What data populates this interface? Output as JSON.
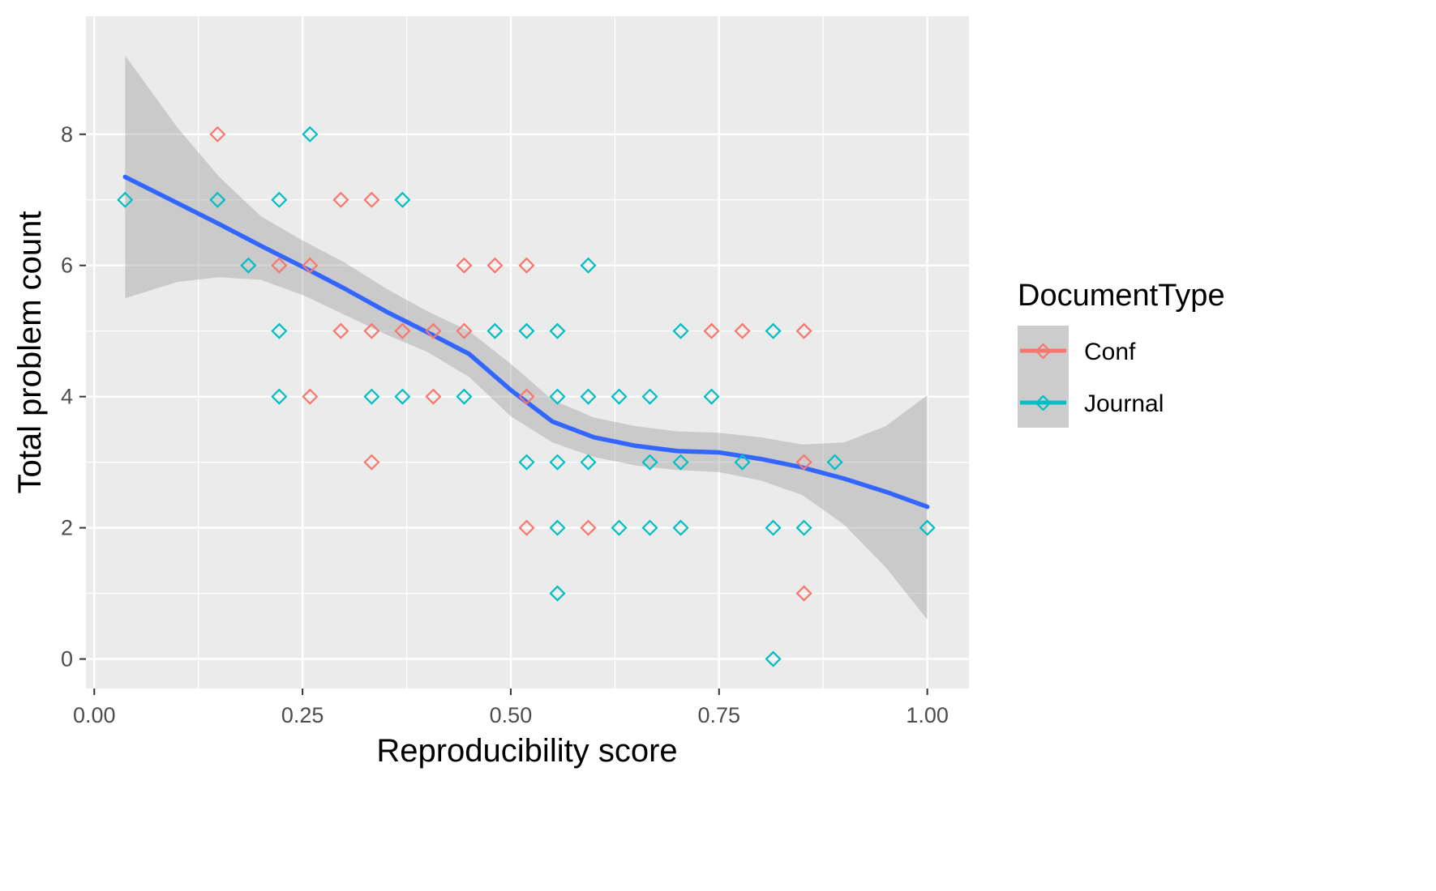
{
  "chart_data": {
    "type": "scatter",
    "xlabel": "Reproducibility score",
    "ylabel": "Total problem count",
    "xlim": [
      -0.01,
      1.05
    ],
    "ylim": [
      -0.45,
      9.8
    ],
    "x_ticks": [
      {
        "value": 0.0,
        "label": "0.00"
      },
      {
        "value": 0.25,
        "label": "0.25"
      },
      {
        "value": 0.5,
        "label": "0.50"
      },
      {
        "value": 0.75,
        "label": "0.75"
      },
      {
        "value": 1.0,
        "label": "1.00"
      }
    ],
    "y_ticks": [
      {
        "value": 0,
        "label": "0"
      },
      {
        "value": 2,
        "label": "2"
      },
      {
        "value": 4,
        "label": "4"
      },
      {
        "value": 6,
        "label": "6"
      },
      {
        "value": 8,
        "label": "8"
      }
    ],
    "grid": true,
    "background": "#ebebeb",
    "legend": {
      "title": "DocumentType",
      "position": "right",
      "entries": [
        {
          "label": "Conf",
          "color": "#F8766D"
        },
        {
          "label": "Journal",
          "color": "#00BFC4"
        }
      ]
    },
    "marker": "diamond-open",
    "series": [
      {
        "name": "Conf",
        "color": "#F8766D",
        "points": [
          [
            0.148,
            8
          ],
          [
            0.222,
            6
          ],
          [
            0.259,
            6
          ],
          [
            0.259,
            4
          ],
          [
            0.296,
            7
          ],
          [
            0.296,
            5
          ],
          [
            0.333,
            7
          ],
          [
            0.333,
            5
          ],
          [
            0.333,
            3
          ],
          [
            0.37,
            5
          ],
          [
            0.407,
            5
          ],
          [
            0.407,
            4
          ],
          [
            0.444,
            6
          ],
          [
            0.444,
            5
          ],
          [
            0.481,
            6
          ],
          [
            0.519,
            6
          ],
          [
            0.519,
            4
          ],
          [
            0.519,
            2
          ],
          [
            0.593,
            2
          ],
          [
            0.741,
            5
          ],
          [
            0.778,
            5
          ],
          [
            0.852,
            5
          ],
          [
            0.852,
            3
          ],
          [
            0.852,
            1
          ]
        ]
      },
      {
        "name": "Journal",
        "color": "#00BFC4",
        "points": [
          [
            0.037,
            7
          ],
          [
            0.148,
            7
          ],
          [
            0.185,
            6
          ],
          [
            0.222,
            7
          ],
          [
            0.222,
            5
          ],
          [
            0.222,
            4
          ],
          [
            0.259,
            8
          ],
          [
            0.333,
            4
          ],
          [
            0.37,
            7
          ],
          [
            0.37,
            4
          ],
          [
            0.444,
            4
          ],
          [
            0.481,
            5
          ],
          [
            0.519,
            5
          ],
          [
            0.519,
            3
          ],
          [
            0.556,
            5
          ],
          [
            0.556,
            4
          ],
          [
            0.556,
            3
          ],
          [
            0.556,
            2
          ],
          [
            0.556,
            1
          ],
          [
            0.593,
            6
          ],
          [
            0.593,
            4
          ],
          [
            0.593,
            3
          ],
          [
            0.63,
            4
          ],
          [
            0.63,
            2
          ],
          [
            0.667,
            4
          ],
          [
            0.667,
            3
          ],
          [
            0.667,
            2
          ],
          [
            0.704,
            5
          ],
          [
            0.704,
            3
          ],
          [
            0.704,
            2
          ],
          [
            0.741,
            4
          ],
          [
            0.778,
            3
          ],
          [
            0.815,
            5
          ],
          [
            0.815,
            2
          ],
          [
            0.815,
            0
          ],
          [
            0.852,
            2
          ],
          [
            0.889,
            3
          ],
          [
            1.0,
            2
          ]
        ]
      }
    ],
    "smooth": {
      "color": "#3366FF",
      "band_color": "#999999",
      "line": [
        [
          0.037,
          7.35
        ],
        [
          0.1,
          6.95
        ],
        [
          0.15,
          6.63
        ],
        [
          0.2,
          6.3
        ],
        [
          0.25,
          5.98
        ],
        [
          0.3,
          5.65
        ],
        [
          0.35,
          5.3
        ],
        [
          0.4,
          4.98
        ],
        [
          0.45,
          4.65
        ],
        [
          0.5,
          4.1
        ],
        [
          0.55,
          3.62
        ],
        [
          0.6,
          3.38
        ],
        [
          0.65,
          3.25
        ],
        [
          0.7,
          3.17
        ],
        [
          0.75,
          3.15
        ],
        [
          0.8,
          3.05
        ],
        [
          0.85,
          2.92
        ],
        [
          0.9,
          2.75
        ],
        [
          0.95,
          2.55
        ],
        [
          1.0,
          2.32
        ]
      ],
      "upper": [
        [
          0.037,
          9.2
        ],
        [
          0.1,
          8.1
        ],
        [
          0.15,
          7.35
        ],
        [
          0.2,
          6.75
        ],
        [
          0.25,
          6.38
        ],
        [
          0.3,
          6.05
        ],
        [
          0.35,
          5.65
        ],
        [
          0.4,
          5.3
        ],
        [
          0.45,
          5.0
        ],
        [
          0.5,
          4.5
        ],
        [
          0.55,
          3.95
        ],
        [
          0.6,
          3.68
        ],
        [
          0.65,
          3.55
        ],
        [
          0.7,
          3.47
        ],
        [
          0.75,
          3.45
        ],
        [
          0.8,
          3.38
        ],
        [
          0.85,
          3.27
        ],
        [
          0.9,
          3.3
        ],
        [
          0.95,
          3.55
        ],
        [
          1.0,
          4.02
        ]
      ],
      "lower": [
        [
          0.037,
          5.5
        ],
        [
          0.1,
          5.75
        ],
        [
          0.15,
          5.82
        ],
        [
          0.2,
          5.78
        ],
        [
          0.25,
          5.55
        ],
        [
          0.3,
          5.25
        ],
        [
          0.35,
          4.95
        ],
        [
          0.4,
          4.68
        ],
        [
          0.45,
          4.3
        ],
        [
          0.5,
          3.7
        ],
        [
          0.55,
          3.3
        ],
        [
          0.6,
          3.08
        ],
        [
          0.65,
          2.95
        ],
        [
          0.7,
          2.88
        ],
        [
          0.75,
          2.85
        ],
        [
          0.8,
          2.72
        ],
        [
          0.85,
          2.5
        ],
        [
          0.9,
          2.05
        ],
        [
          0.95,
          1.4
        ],
        [
          1.0,
          0.6
        ]
      ]
    }
  }
}
